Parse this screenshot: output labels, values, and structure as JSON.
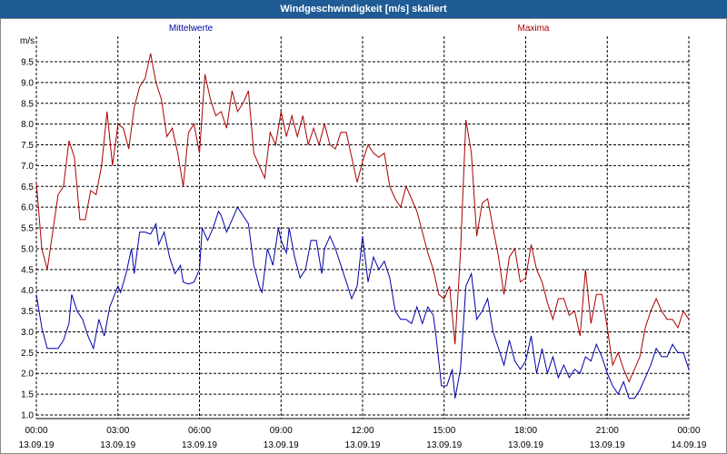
{
  "window": {
    "title": "Windgeschwindigkeit [m/s] skaliert"
  },
  "chart_data": {
    "type": "line",
    "title": "Windgeschwindigkeit [m/s] skaliert",
    "ylabel": "m/s",
    "xlabel": "",
    "ylim": [
      0.9,
      9.9
    ],
    "xlim_hours": [
      0,
      24
    ],
    "grid": true,
    "yticks": [
      1.0,
      1.5,
      2.0,
      2.5,
      3.0,
      3.5,
      4.0,
      4.5,
      5.0,
      5.5,
      6.0,
      6.5,
      7.0,
      7.5,
      8.0,
      8.5,
      9.0,
      9.5
    ],
    "ytick_labels": [
      "1.0",
      "1.5",
      "2.0",
      "2.5",
      "3.0",
      "3.5",
      "4.0",
      "4.5",
      "5.0",
      "5.5",
      "6.0",
      "6.5",
      "7.0",
      "7.5",
      "8.0",
      "8.5",
      "9.0",
      "9.5"
    ],
    "x_ticks": [
      {
        "h": 0,
        "time": "00:00",
        "date": "13.09.19"
      },
      {
        "h": 3,
        "time": "03:00",
        "date": "13.09.19"
      },
      {
        "h": 6,
        "time": "06:00",
        "date": "13.09.19"
      },
      {
        "h": 9,
        "time": "09:00",
        "date": "13.09.19"
      },
      {
        "h": 12,
        "time": "12:00",
        "date": "13.09.19"
      },
      {
        "h": 15,
        "time": "15:00",
        "date": "13.09.19"
      },
      {
        "h": 18,
        "time": "18:00",
        "date": "13.09.19"
      },
      {
        "h": 21,
        "time": "21:00",
        "date": "13.09.19"
      },
      {
        "h": 24,
        "time": "00:00",
        "date": "14.09.19"
      }
    ],
    "series": [
      {
        "name": "Mittelwerte",
        "color": "#0000aa",
        "points": [
          [
            0.0,
            3.9
          ],
          [
            0.2,
            3.1
          ],
          [
            0.4,
            2.6
          ],
          [
            0.6,
            2.6
          ],
          [
            0.8,
            2.6
          ],
          [
            1.0,
            2.8
          ],
          [
            1.2,
            3.2
          ],
          [
            1.3,
            3.9
          ],
          [
            1.5,
            3.5
          ],
          [
            1.7,
            3.3
          ],
          [
            1.9,
            2.9
          ],
          [
            2.1,
            2.6
          ],
          [
            2.3,
            3.3
          ],
          [
            2.5,
            2.9
          ],
          [
            2.7,
            3.6
          ],
          [
            3.0,
            4.1
          ],
          [
            3.1,
            3.95
          ],
          [
            3.3,
            4.4
          ],
          [
            3.5,
            5.0
          ],
          [
            3.6,
            4.4
          ],
          [
            3.8,
            5.4
          ],
          [
            4.0,
            5.4
          ],
          [
            4.2,
            5.35
          ],
          [
            4.4,
            5.6
          ],
          [
            4.5,
            5.1
          ],
          [
            4.7,
            5.4
          ],
          [
            4.9,
            4.8
          ],
          [
            5.1,
            4.4
          ],
          [
            5.3,
            4.6
          ],
          [
            5.4,
            4.2
          ],
          [
            5.6,
            4.15
          ],
          [
            5.8,
            4.2
          ],
          [
            6.0,
            4.5
          ],
          [
            6.1,
            5.5
          ],
          [
            6.3,
            5.2
          ],
          [
            6.5,
            5.5
          ],
          [
            6.7,
            5.9
          ],
          [
            6.8,
            5.8
          ],
          [
            7.0,
            5.4
          ],
          [
            7.2,
            5.7
          ],
          [
            7.4,
            6.0
          ],
          [
            7.6,
            5.8
          ],
          [
            7.8,
            5.6
          ],
          [
            8.0,
            4.6
          ],
          [
            8.2,
            4.1
          ],
          [
            8.3,
            3.95
          ],
          [
            8.5,
            5.0
          ],
          [
            8.7,
            4.6
          ],
          [
            8.9,
            5.5
          ],
          [
            9.0,
            5.2
          ],
          [
            9.2,
            4.9
          ],
          [
            9.3,
            5.5
          ],
          [
            9.5,
            4.8
          ],
          [
            9.7,
            4.3
          ],
          [
            9.9,
            4.5
          ],
          [
            10.1,
            5.2
          ],
          [
            10.3,
            5.2
          ],
          [
            10.5,
            4.4
          ],
          [
            10.6,
            5.0
          ],
          [
            10.8,
            5.3
          ],
          [
            11.0,
            5.0
          ],
          [
            11.2,
            4.6
          ],
          [
            11.4,
            4.2
          ],
          [
            11.6,
            3.8
          ],
          [
            11.8,
            4.1
          ],
          [
            12.0,
            5.3
          ],
          [
            12.2,
            4.2
          ],
          [
            12.4,
            4.8
          ],
          [
            12.6,
            4.5
          ],
          [
            12.8,
            4.7
          ],
          [
            13.0,
            4.3
          ],
          [
            13.2,
            3.5
          ],
          [
            13.4,
            3.3
          ],
          [
            13.6,
            3.3
          ],
          [
            13.8,
            3.2
          ],
          [
            14.0,
            3.6
          ],
          [
            14.2,
            3.2
          ],
          [
            14.4,
            3.6
          ],
          [
            14.6,
            3.4
          ],
          [
            14.7,
            2.9
          ],
          [
            14.9,
            1.7
          ],
          [
            15.1,
            1.7
          ],
          [
            15.3,
            2.1
          ],
          [
            15.4,
            1.4
          ],
          [
            15.6,
            2.1
          ],
          [
            15.8,
            4.1
          ],
          [
            16.0,
            4.4
          ],
          [
            16.2,
            3.3
          ],
          [
            16.4,
            3.5
          ],
          [
            16.6,
            3.8
          ],
          [
            16.8,
            3.0
          ],
          [
            17.0,
            2.6
          ],
          [
            17.2,
            2.2
          ],
          [
            17.4,
            2.8
          ],
          [
            17.6,
            2.3
          ],
          [
            17.8,
            2.1
          ],
          [
            18.0,
            2.3
          ],
          [
            18.2,
            2.9
          ],
          [
            18.4,
            2.0
          ],
          [
            18.6,
            2.6
          ],
          [
            18.8,
            2.0
          ],
          [
            19.0,
            2.4
          ],
          [
            19.2,
            1.9
          ],
          [
            19.4,
            2.2
          ],
          [
            19.6,
            1.9
          ],
          [
            19.8,
            2.1
          ],
          [
            20.0,
            2.0
          ],
          [
            20.2,
            2.4
          ],
          [
            20.4,
            2.3
          ],
          [
            20.6,
            2.7
          ],
          [
            20.8,
            2.4
          ],
          [
            21.0,
            2.0
          ],
          [
            21.2,
            1.7
          ],
          [
            21.4,
            1.5
          ],
          [
            21.6,
            1.8
          ],
          [
            21.8,
            1.4
          ],
          [
            22.0,
            1.4
          ],
          [
            22.2,
            1.6
          ],
          [
            22.4,
            1.9
          ],
          [
            22.6,
            2.2
          ],
          [
            22.8,
            2.6
          ],
          [
            23.0,
            2.4
          ],
          [
            23.2,
            2.4
          ],
          [
            23.4,
            2.7
          ],
          [
            23.6,
            2.5
          ],
          [
            23.8,
            2.5
          ],
          [
            24.0,
            2.1
          ]
        ]
      },
      {
        "name": "Maxima",
        "color": "#aa0000",
        "points": [
          [
            0.0,
            6.6
          ],
          [
            0.2,
            5.0
          ],
          [
            0.4,
            4.5
          ],
          [
            0.6,
            5.4
          ],
          [
            0.8,
            6.3
          ],
          [
            1.0,
            6.5
          ],
          [
            1.2,
            7.6
          ],
          [
            1.4,
            7.2
          ],
          [
            1.6,
            5.7
          ],
          [
            1.8,
            5.7
          ],
          [
            2.0,
            6.4
          ],
          [
            2.2,
            6.3
          ],
          [
            2.4,
            7.0
          ],
          [
            2.6,
            8.3
          ],
          [
            2.8,
            7.0
          ],
          [
            3.0,
            8.0
          ],
          [
            3.2,
            7.9
          ],
          [
            3.4,
            7.4
          ],
          [
            3.6,
            8.4
          ],
          [
            3.8,
            8.9
          ],
          [
            4.0,
            9.1
          ],
          [
            4.2,
            9.7
          ],
          [
            4.4,
            9.0
          ],
          [
            4.6,
            8.6
          ],
          [
            4.8,
            7.7
          ],
          [
            5.0,
            7.9
          ],
          [
            5.2,
            7.3
          ],
          [
            5.4,
            6.5
          ],
          [
            5.6,
            7.8
          ],
          [
            5.8,
            8.0
          ],
          [
            6.0,
            7.3
          ],
          [
            6.2,
            9.2
          ],
          [
            6.4,
            8.6
          ],
          [
            6.6,
            8.2
          ],
          [
            6.8,
            8.3
          ],
          [
            7.0,
            7.9
          ],
          [
            7.2,
            8.8
          ],
          [
            7.4,
            8.3
          ],
          [
            7.6,
            8.5
          ],
          [
            7.8,
            8.8
          ],
          [
            8.0,
            7.3
          ],
          [
            8.2,
            7.0
          ],
          [
            8.4,
            6.7
          ],
          [
            8.6,
            7.8
          ],
          [
            8.8,
            7.5
          ],
          [
            9.0,
            8.3
          ],
          [
            9.2,
            7.7
          ],
          [
            9.4,
            8.2
          ],
          [
            9.6,
            7.7
          ],
          [
            9.8,
            8.2
          ],
          [
            10.0,
            7.5
          ],
          [
            10.2,
            7.9
          ],
          [
            10.4,
            7.5
          ],
          [
            10.6,
            8.0
          ],
          [
            10.8,
            7.5
          ],
          [
            11.0,
            7.4
          ],
          [
            11.2,
            7.8
          ],
          [
            11.4,
            7.8
          ],
          [
            11.6,
            7.2
          ],
          [
            11.8,
            6.6
          ],
          [
            12.0,
            7.1
          ],
          [
            12.2,
            7.5
          ],
          [
            12.4,
            7.3
          ],
          [
            12.6,
            7.2
          ],
          [
            12.8,
            7.3
          ],
          [
            13.0,
            6.5
          ],
          [
            13.2,
            6.2
          ],
          [
            13.4,
            6.0
          ],
          [
            13.6,
            6.5
          ],
          [
            13.8,
            6.2
          ],
          [
            14.0,
            5.9
          ],
          [
            14.2,
            5.4
          ],
          [
            14.4,
            4.9
          ],
          [
            14.6,
            4.5
          ],
          [
            14.8,
            3.9
          ],
          [
            15.0,
            3.8
          ],
          [
            15.2,
            4.1
          ],
          [
            15.4,
            2.7
          ],
          [
            15.6,
            4.9
          ],
          [
            15.8,
            8.1
          ],
          [
            16.0,
            7.3
          ],
          [
            16.2,
            5.3
          ],
          [
            16.4,
            6.1
          ],
          [
            16.6,
            6.2
          ],
          [
            16.8,
            5.5
          ],
          [
            17.0,
            4.8
          ],
          [
            17.2,
            3.9
          ],
          [
            17.4,
            4.8
          ],
          [
            17.6,
            5.0
          ],
          [
            17.8,
            4.2
          ],
          [
            18.0,
            4.3
          ],
          [
            18.2,
            5.1
          ],
          [
            18.4,
            4.5
          ],
          [
            18.6,
            4.2
          ],
          [
            18.8,
            3.7
          ],
          [
            19.0,
            3.3
          ],
          [
            19.2,
            3.8
          ],
          [
            19.4,
            3.8
          ],
          [
            19.6,
            3.4
          ],
          [
            19.8,
            3.5
          ],
          [
            20.0,
            2.9
          ],
          [
            20.2,
            4.5
          ],
          [
            20.4,
            3.2
          ],
          [
            20.6,
            3.9
          ],
          [
            20.8,
            3.9
          ],
          [
            21.0,
            3.1
          ],
          [
            21.2,
            2.2
          ],
          [
            21.4,
            2.5
          ],
          [
            21.6,
            2.1
          ],
          [
            21.8,
            1.8
          ],
          [
            22.0,
            2.1
          ],
          [
            22.2,
            2.4
          ],
          [
            22.4,
            3.1
          ],
          [
            22.6,
            3.5
          ],
          [
            22.8,
            3.8
          ],
          [
            23.0,
            3.5
          ],
          [
            23.2,
            3.3
          ],
          [
            23.4,
            3.3
          ],
          [
            23.6,
            3.1
          ],
          [
            23.8,
            3.5
          ],
          [
            24.0,
            3.3
          ]
        ]
      }
    ]
  }
}
